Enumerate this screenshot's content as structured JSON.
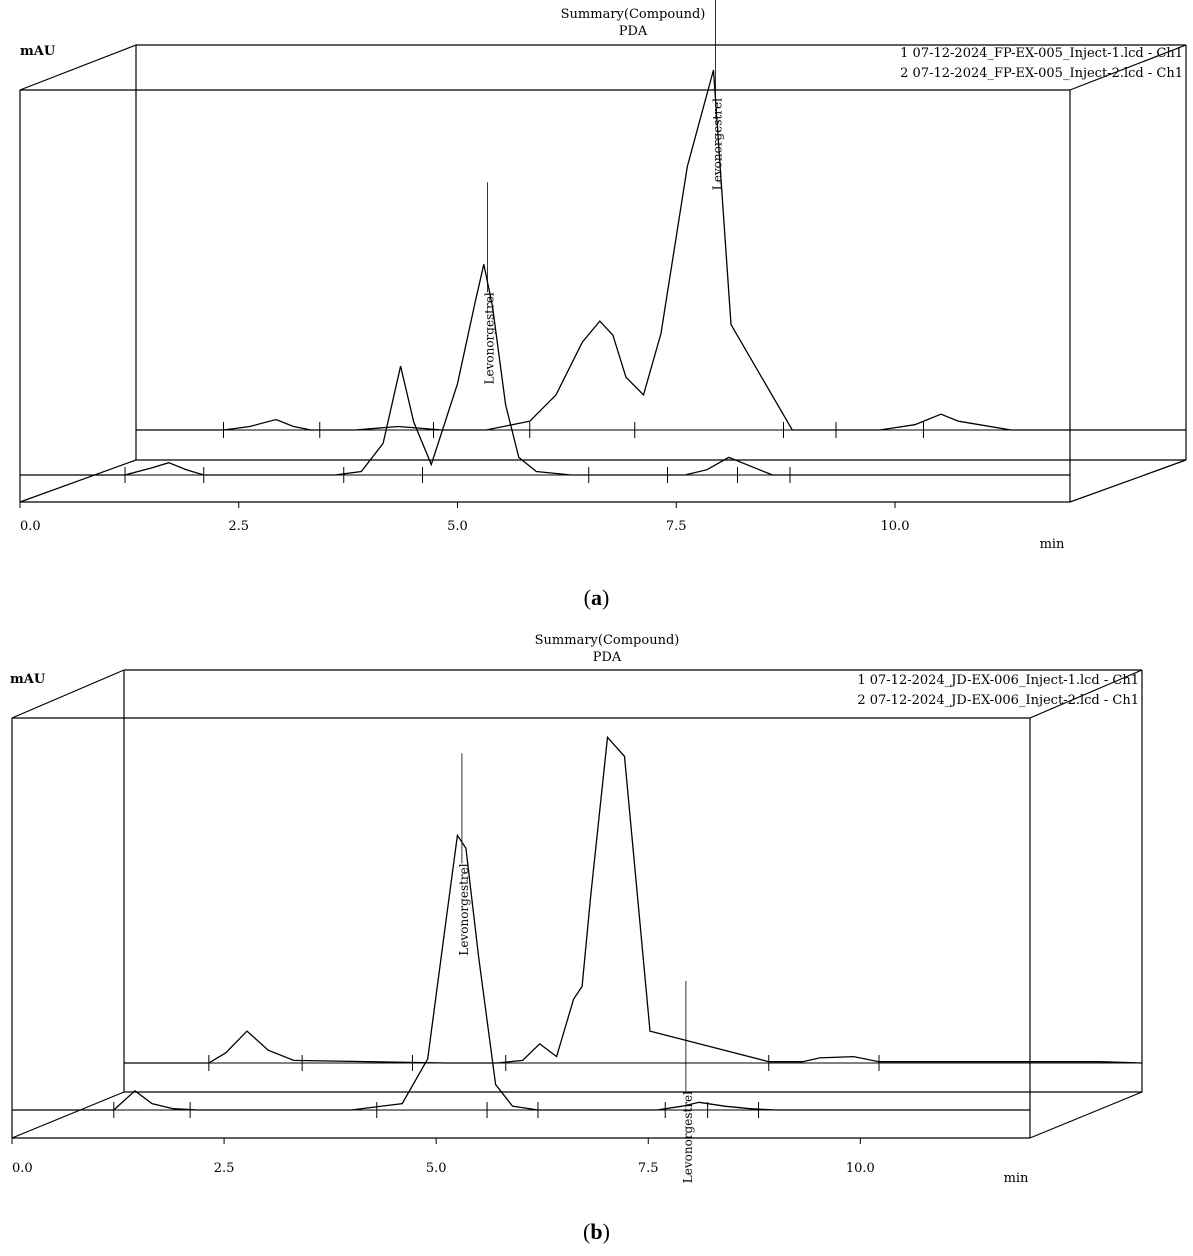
{
  "chart_data": [
    {
      "type": "line",
      "panel": "a",
      "title": "Summary(Compound)",
      "subtitle": "PDA",
      "ylabel": "mAU",
      "xlabel": "min",
      "xlim": [
        0.0,
        12.0
      ],
      "xticks": [
        "0.0",
        "2.5",
        "5.0",
        "7.5",
        "10.0"
      ],
      "legend": [
        "1 07-12-2024_FP-EX-005_Inject-1.lcd - Ch1",
        "2 07-12-2024_FP-EX-005_Inject-2.lcd - Ch1"
      ],
      "series": [
        {
          "name": "1 07-12-2024_FP-EX-005_Inject-1.lcd - Ch1",
          "x": [
            0.0,
            1.2,
            1.5,
            1.7,
            1.9,
            2.1,
            3.0,
            3.6,
            3.9,
            4.15,
            4.35,
            4.5,
            4.7,
            5.0,
            5.2,
            5.3,
            5.4,
            5.55,
            5.7,
            5.9,
            6.3,
            6.5,
            7.2,
            7.6,
            7.85,
            8.1,
            8.35,
            8.6,
            8.8,
            9.5,
            11.5,
            12.0
          ],
          "y": [
            0,
            0,
            4,
            7,
            3,
            0,
            0,
            0,
            2,
            18,
            62,
            30,
            6,
            52,
            98,
            120,
            96,
            40,
            10,
            2,
            0,
            0,
            0,
            0,
            3,
            10,
            5,
            0,
            0,
            0,
            0,
            0
          ]
        },
        {
          "name": "2 07-12-2024_FP-EX-005_Inject-2.lcd - Ch1",
          "x": [
            0.0,
            1.0,
            1.3,
            1.6,
            1.8,
            2.0,
            2.5,
            3.0,
            3.5,
            4.0,
            4.5,
            4.8,
            5.1,
            5.3,
            5.45,
            5.6,
            5.8,
            6.0,
            6.3,
            6.6,
            6.8,
            7.5,
            8.0,
            8.5,
            8.9,
            9.2,
            9.4,
            10.0,
            11.3,
            12.0
          ],
          "y": [
            0,
            0,
            2,
            6,
            2,
            0,
            0,
            2,
            0,
            0,
            5,
            20,
            50,
            62,
            54,
            30,
            20,
            55,
            150,
            205,
            60,
            0,
            0,
            0,
            3,
            9,
            5,
            0,
            0,
            0
          ]
        }
      ],
      "peak_labels": [
        "Levonorgestrel",
        "Levonorgestrel"
      ],
      "grid": false
    },
    {
      "type": "line",
      "panel": "b",
      "title": "Summary(Compound)",
      "subtitle": "PDA",
      "ylabel": "mAU",
      "xlabel": "min",
      "xlim": [
        0.0,
        12.0
      ],
      "xticks": [
        "0.0",
        "2.5",
        "5.0",
        "7.5",
        "10.0"
      ],
      "legend": [
        "1 07-12-2024_JD-EX-006_Inject-1.lcd - Ch1",
        "2 07-12-2024_JD-EX-006_Inject-2.lcd - Ch1"
      ],
      "series": [
        {
          "name": "1 07-12-2024_JD-EX-006_Inject-1.lcd - Ch1",
          "x": [
            0.0,
            1.2,
            1.45,
            1.65,
            1.9,
            2.2,
            4.0,
            4.6,
            4.9,
            5.1,
            5.25,
            5.35,
            5.5,
            5.7,
            5.9,
            6.2,
            7.6,
            7.9,
            8.1,
            8.4,
            8.7,
            9.0,
            12.0
          ],
          "y": [
            0,
            0,
            15,
            5,
            1,
            0,
            0,
            5,
            40,
            140,
            215,
            205,
            120,
            20,
            3,
            0,
            0,
            3,
            6,
            3,
            1,
            0,
            0
          ]
        },
        {
          "name": "2 07-12-2024_JD-EX-006_Inject-2.lcd - Ch1",
          "x": [
            0.0,
            1.0,
            1.2,
            1.45,
            1.7,
            2.0,
            3.8,
            4.4,
            4.7,
            4.9,
            5.1,
            5.3,
            5.4,
            5.5,
            5.7,
            5.9,
            6.2,
            7.6,
            8.0,
            8.2,
            8.6,
            8.9,
            11.5,
            12.0
          ],
          "y": [
            0,
            0,
            8,
            25,
            10,
            2,
            0,
            0,
            2,
            15,
            5,
            50,
            60,
            130,
            255,
            240,
            25,
            1,
            1,
            4,
            5,
            1,
            1,
            0
          ]
        }
      ],
      "peak_labels": [
        "Levonorgestrel",
        "Levonorgestrel"
      ],
      "grid": false
    }
  ],
  "captions": [
    "a",
    "b"
  ]
}
